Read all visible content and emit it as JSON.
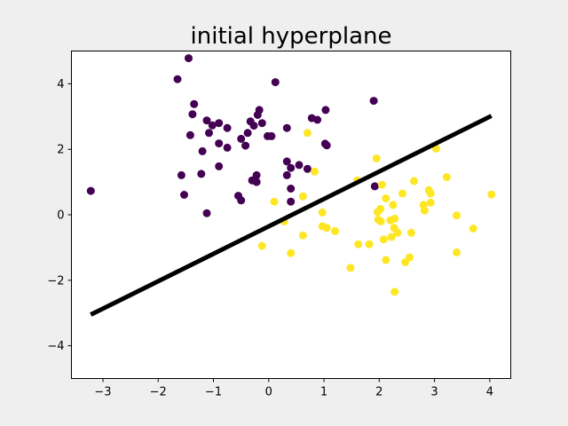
{
  "chart_data": {
    "type": "scatter",
    "title": "initial hyperplane",
    "xlabel": "",
    "ylabel": "",
    "xlim": [
      -3.57,
      4.38
    ],
    "ylim": [
      -5,
      5
    ],
    "xticks": [
      -3,
      -2,
      -1,
      0,
      1,
      2,
      3,
      4
    ],
    "yticks": [
      -4,
      -2,
      0,
      2,
      4
    ],
    "tick_labels": {
      "x": [
        "−3",
        "−2",
        "−1",
        "0",
        "1",
        "2",
        "3",
        "4"
      ],
      "y": [
        "−4",
        "−2",
        "0",
        "2",
        "4"
      ]
    },
    "grid": false,
    "colors": {
      "background": "#efefef",
      "plot_area": "#ffffff",
      "class_0": "#440154",
      "class_1": "#fde725",
      "hyperplane": "#000000"
    },
    "series": [
      {
        "class": 0,
        "color": "#440154",
        "points": [
          [
            -3.22,
            0.73
          ],
          [
            -1.45,
            4.78
          ],
          [
            -1.65,
            4.14
          ],
          [
            -1.35,
            3.38
          ],
          [
            -1.38,
            3.07
          ],
          [
            -1.42,
            2.43
          ],
          [
            -1.58,
            1.21
          ],
          [
            -1.53,
            0.61
          ],
          [
            -1.12,
            0.05
          ],
          [
            -1.22,
            1.25
          ],
          [
            -1.2,
            1.94
          ],
          [
            -1.12,
            2.88
          ],
          [
            -1.02,
            2.73
          ],
          [
            -1.08,
            2.5
          ],
          [
            -0.9,
            2.8
          ],
          [
            -0.9,
            2.18
          ],
          [
            -0.9,
            1.48
          ],
          [
            -0.75,
            2.65
          ],
          [
            -0.75,
            2.05
          ],
          [
            -0.55,
            0.58
          ],
          [
            -0.5,
            0.44
          ],
          [
            -0.5,
            2.32
          ],
          [
            -0.42,
            2.11
          ],
          [
            -0.38,
            2.5
          ],
          [
            -0.33,
            2.85
          ],
          [
            -0.27,
            2.72
          ],
          [
            -0.2,
            3.05
          ],
          [
            -0.17,
            3.2
          ],
          [
            -0.12,
            2.8
          ],
          [
            -0.02,
            2.4
          ],
          [
            0.05,
            2.4
          ],
          [
            0.12,
            4.05
          ],
          [
            -0.3,
            1.05
          ],
          [
            -0.22,
            1.0
          ],
          [
            -0.22,
            1.21
          ],
          [
            0.33,
            2.65
          ],
          [
            0.33,
            1.63
          ],
          [
            0.33,
            1.21
          ],
          [
            0.4,
            1.43
          ],
          [
            0.4,
            0.8
          ],
          [
            0.4,
            0.4
          ],
          [
            0.55,
            1.52
          ],
          [
            0.7,
            1.4
          ],
          [
            0.78,
            2.95
          ],
          [
            0.88,
            2.9
          ],
          [
            1.03,
            3.2
          ],
          [
            1.02,
            2.17
          ],
          [
            1.05,
            2.12
          ],
          [
            1.9,
            3.48
          ],
          [
            1.92,
            0.87
          ]
        ]
      },
      {
        "class": 1,
        "color": "#fde725",
        "points": [
          [
            0.7,
            2.5
          ],
          [
            0.83,
            1.32
          ],
          [
            0.62,
            0.56
          ],
          [
            0.1,
            0.4
          ],
          [
            0.28,
            -0.2
          ],
          [
            -0.12,
            -0.95
          ],
          [
            0.4,
            -1.17
          ],
          [
            0.62,
            -0.63
          ],
          [
            0.97,
            0.07
          ],
          [
            0.97,
            -0.35
          ],
          [
            1.05,
            -0.4
          ],
          [
            1.2,
            -0.5
          ],
          [
            1.48,
            -1.62
          ],
          [
            1.6,
            1.05
          ],
          [
            1.62,
            -0.9
          ],
          [
            1.82,
            -0.9
          ],
          [
            1.95,
            1.72
          ],
          [
            1.97,
            0.08
          ],
          [
            1.98,
            -0.15
          ],
          [
            2.02,
            0.18
          ],
          [
            2.03,
            -0.2
          ],
          [
            2.05,
            0.92
          ],
          [
            2.08,
            -0.75
          ],
          [
            2.12,
            0.5
          ],
          [
            2.12,
            -1.38
          ],
          [
            2.2,
            -0.17
          ],
          [
            2.22,
            -0.68
          ],
          [
            2.25,
            0.3
          ],
          [
            2.27,
            -0.4
          ],
          [
            2.28,
            -0.12
          ],
          [
            2.28,
            -2.35
          ],
          [
            2.33,
            -0.55
          ],
          [
            2.42,
            0.65
          ],
          [
            2.47,
            -1.45
          ],
          [
            2.55,
            -1.3
          ],
          [
            2.58,
            -0.55
          ],
          [
            2.63,
            1.03
          ],
          [
            2.8,
            0.3
          ],
          [
            2.82,
            0.13
          ],
          [
            2.9,
            0.75
          ],
          [
            2.93,
            0.65
          ],
          [
            2.93,
            0.37
          ],
          [
            3.03,
            2.02
          ],
          [
            3.22,
            1.15
          ],
          [
            3.4,
            -0.02
          ],
          [
            3.4,
            -1.15
          ],
          [
            3.7,
            -0.42
          ],
          [
            4.03,
            0.62
          ]
        ]
      }
    ],
    "hyperplane": {
      "x": [
        -3.22,
        4.03
      ],
      "y": [
        -3.05,
        3.02
      ]
    }
  }
}
